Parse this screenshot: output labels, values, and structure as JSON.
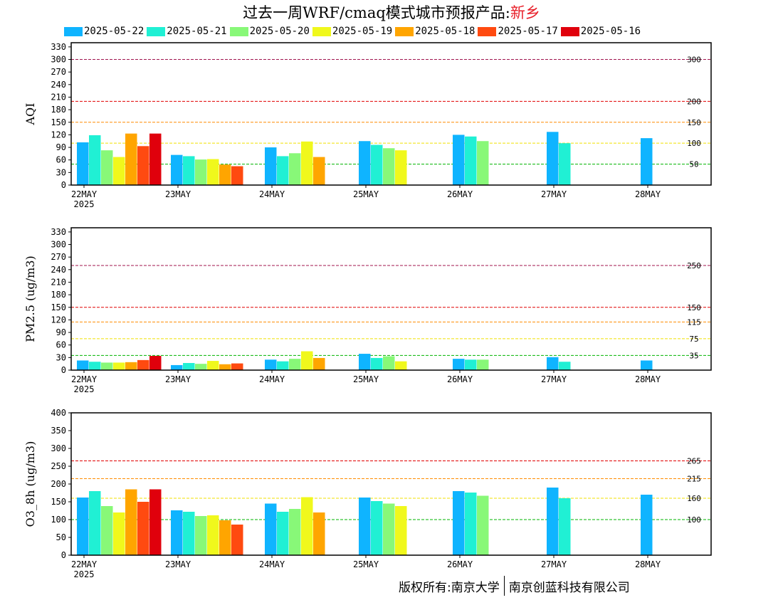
{
  "title": {
    "main": "过去一周WRF/cmaq模式城市预报产品:",
    "city": "新乡"
  },
  "legend": [
    {
      "label": "2025-05-22",
      "color": "#0fb4ff"
    },
    {
      "label": "2025-05-21",
      "color": "#20f0d4"
    },
    {
      "label": "2025-05-20",
      "color": "#88f878"
    },
    {
      "label": "2025-05-19",
      "color": "#f0f81c"
    },
    {
      "label": "2025-05-18",
      "color": "#ffa500"
    },
    {
      "label": "2025-05-17",
      "color": "#ff4a10"
    },
    {
      "label": "2025-05-16",
      "color": "#e0000c"
    }
  ],
  "chart_data": [
    {
      "type": "bar",
      "ylabel": "AQI",
      "ylim": [
        0,
        340
      ],
      "yticks": [
        0,
        30,
        60,
        90,
        120,
        150,
        180,
        210,
        240,
        270,
        300,
        330
      ],
      "categories": [
        "22MAY",
        "23MAY",
        "24MAY",
        "25MAY",
        "26MAY",
        "27MAY",
        "28MAY"
      ],
      "year_label": "2025",
      "series": [
        {
          "name": "2025-05-22",
          "values": [
            102,
            72,
            90,
            105,
            120,
            127,
            112
          ]
        },
        {
          "name": "2025-05-21",
          "values": [
            119,
            69,
            69,
            96,
            116,
            100,
            null
          ]
        },
        {
          "name": "2025-05-20",
          "values": [
            83,
            61,
            76,
            88,
            105,
            null,
            null
          ]
        },
        {
          "name": "2025-05-19",
          "values": [
            67,
            62,
            104,
            83,
            null,
            null,
            null
          ]
        },
        {
          "name": "2025-05-18",
          "values": [
            123,
            49,
            67,
            null,
            null,
            null,
            null
          ]
        },
        {
          "name": "2025-05-17",
          "values": [
            93,
            45,
            null,
            null,
            null,
            null,
            null
          ]
        },
        {
          "name": "2025-05-16",
          "values": [
            123,
            null,
            null,
            null,
            null,
            null,
            null
          ]
        }
      ],
      "thresholds": [
        {
          "value": 300,
          "label": "300",
          "color": "#a0144e"
        },
        {
          "value": 200,
          "label": "200",
          "color": "#e00000"
        },
        {
          "value": 150,
          "label": "150",
          "color": "#ff8c00"
        },
        {
          "value": 100,
          "label": "100",
          "color": "#f0e000"
        },
        {
          "value": 50,
          "label": "50",
          "color": "#00b400"
        }
      ],
      "grid": false
    },
    {
      "type": "bar",
      "ylabel": "PM2.5 (ug/m3)",
      "ylim": [
        0,
        340
      ],
      "yticks": [
        0,
        30,
        60,
        90,
        120,
        150,
        180,
        210,
        240,
        270,
        300,
        330
      ],
      "categories": [
        "22MAY",
        "23MAY",
        "24MAY",
        "25MAY",
        "26MAY",
        "27MAY",
        "28MAY"
      ],
      "year_label": "2025",
      "series": [
        {
          "name": "2025-05-22",
          "values": [
            23,
            12,
            25,
            39,
            27,
            31,
            23
          ]
        },
        {
          "name": "2025-05-21",
          "values": [
            20,
            17,
            21,
            29,
            25,
            20,
            null
          ]
        },
        {
          "name": "2025-05-20",
          "values": [
            18,
            15,
            27,
            33,
            25,
            null,
            null
          ]
        },
        {
          "name": "2025-05-19",
          "values": [
            18,
            22,
            45,
            21,
            null,
            null,
            null
          ]
        },
        {
          "name": "2025-05-18",
          "values": [
            19,
            14,
            29,
            null,
            null,
            null,
            null
          ]
        },
        {
          "name": "2025-05-17",
          "values": [
            24,
            16,
            null,
            null,
            null,
            null,
            null
          ]
        },
        {
          "name": "2025-05-16",
          "values": [
            34,
            null,
            null,
            null,
            null,
            null,
            null
          ]
        }
      ],
      "thresholds": [
        {
          "value": 250,
          "label": "250",
          "color": "#a0144e"
        },
        {
          "value": 150,
          "label": "150",
          "color": "#e00000"
        },
        {
          "value": 115,
          "label": "115",
          "color": "#ff8c00"
        },
        {
          "value": 75,
          "label": "75",
          "color": "#f0e000"
        },
        {
          "value": 35,
          "label": "35",
          "color": "#00b400"
        }
      ],
      "grid": false
    },
    {
      "type": "bar",
      "ylabel": "O3_8h (ug/m3)",
      "ylim": [
        0,
        400
      ],
      "yticks": [
        0,
        50,
        100,
        150,
        200,
        250,
        300,
        350,
        400
      ],
      "categories": [
        "22MAY",
        "23MAY",
        "24MAY",
        "25MAY",
        "26MAY",
        "27MAY",
        "28MAY"
      ],
      "year_label": "2025",
      "series": [
        {
          "name": "2025-05-22",
          "values": [
            162,
            126,
            145,
            162,
            180,
            190,
            170
          ]
        },
        {
          "name": "2025-05-21",
          "values": [
            180,
            122,
            122,
            152,
            176,
            160,
            null
          ]
        },
        {
          "name": "2025-05-20",
          "values": [
            138,
            110,
            130,
            145,
            167,
            null,
            null
          ]
        },
        {
          "name": "2025-05-19",
          "values": [
            120,
            112,
            163,
            138,
            null,
            null,
            null
          ]
        },
        {
          "name": "2025-05-18",
          "values": [
            185,
            98,
            120,
            null,
            null,
            null,
            null
          ]
        },
        {
          "name": "2025-05-17",
          "values": [
            150,
            86,
            null,
            null,
            null,
            null,
            null
          ]
        },
        {
          "name": "2025-05-16",
          "values": [
            185,
            null,
            null,
            null,
            null,
            null,
            null
          ]
        }
      ],
      "thresholds": [
        {
          "value": 265,
          "label": "265",
          "color": "#e00000"
        },
        {
          "value": 215,
          "label": "215",
          "color": "#ff8c00"
        },
        {
          "value": 160,
          "label": "160",
          "color": "#f0e000"
        },
        {
          "value": 100,
          "label": "100",
          "color": "#00b400"
        }
      ],
      "grid": false
    }
  ],
  "footer": {
    "left": "版权所有:南京大学",
    "right": "南京创蓝科技有限公司"
  }
}
